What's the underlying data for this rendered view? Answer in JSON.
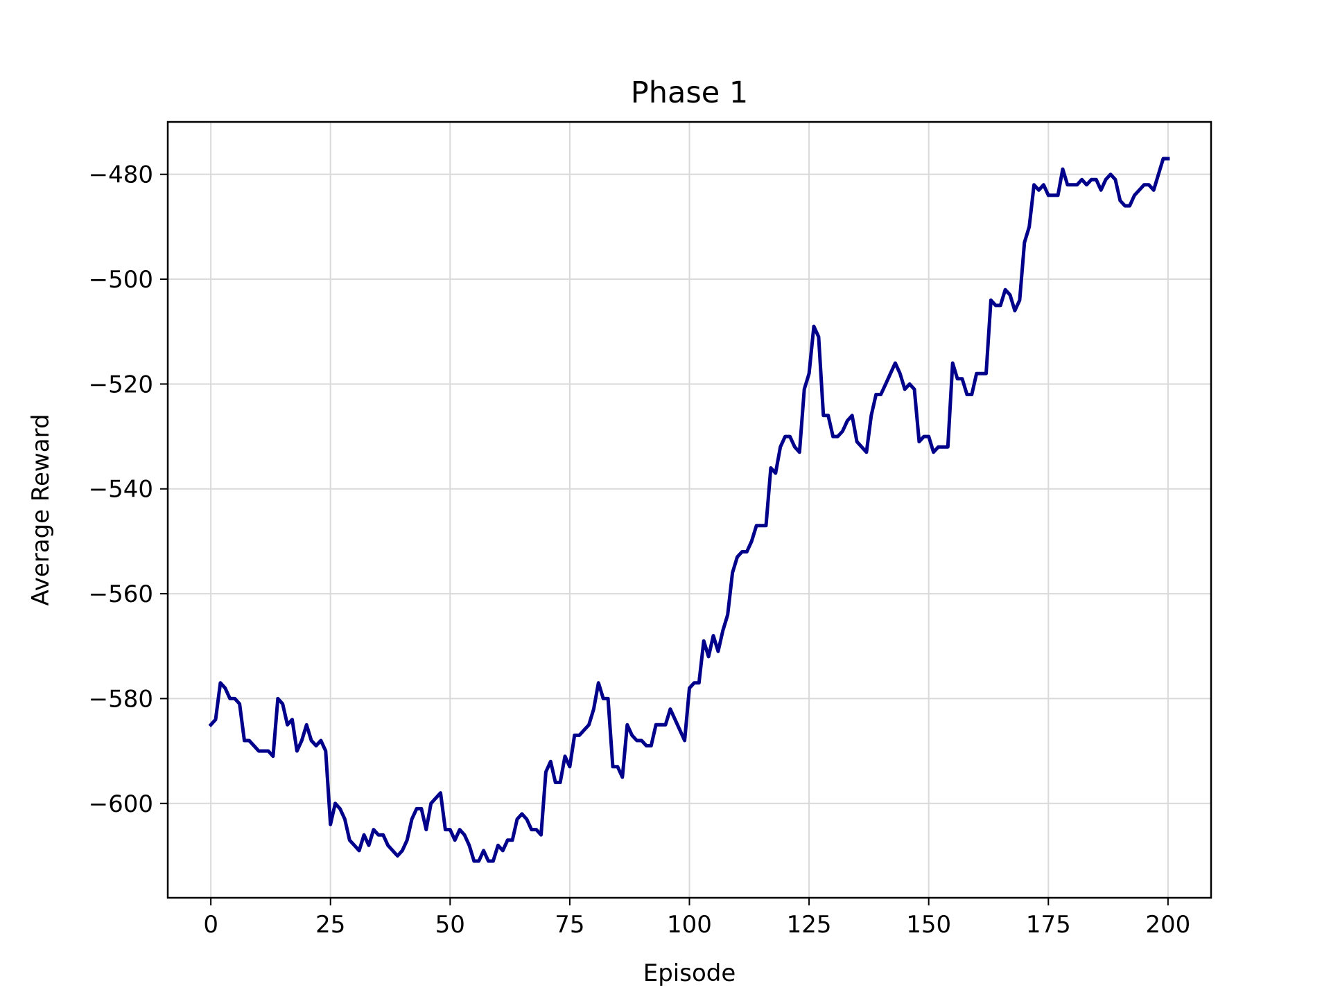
{
  "chart_data": {
    "type": "line",
    "title": "Phase 1",
    "xlabel": "Episode",
    "ylabel": "Average Reward",
    "xlim": [
      -9,
      209
    ],
    "ylim": [
      -618,
      -470
    ],
    "xticks": [
      0,
      25,
      50,
      75,
      100,
      125,
      150,
      175,
      200
    ],
    "yticks": [
      -600,
      -580,
      -560,
      -540,
      -520,
      -500,
      -480
    ],
    "xtick_labels": [
      "0",
      "25",
      "50",
      "75",
      "100",
      "125",
      "150",
      "175",
      "200"
    ],
    "ytick_labels": [
      "−600",
      "−580",
      "−560",
      "−540",
      "−520",
      "−500",
      "−480"
    ],
    "grid": true,
    "line_color": "#00008b",
    "series": [
      {
        "x": [
          0,
          1,
          2,
          3,
          4,
          5,
          6,
          7,
          8,
          9,
          10,
          11,
          12,
          13,
          14,
          15,
          16,
          17,
          18,
          19,
          20,
          21,
          22,
          23,
          24,
          25,
          26,
          27,
          28,
          29,
          30,
          31,
          32,
          33,
          34,
          35,
          36,
          37,
          38,
          39,
          40,
          41,
          42,
          43,
          44,
          45,
          46,
          47,
          48,
          49,
          50,
          51,
          52,
          53,
          54,
          55,
          56,
          57,
          58,
          59,
          60,
          61,
          62,
          63,
          64,
          65,
          66,
          67,
          68,
          69,
          70,
          71,
          72,
          73,
          74,
          75,
          76,
          77,
          78,
          79,
          80,
          81,
          82,
          83,
          84,
          85,
          86,
          87,
          88,
          89,
          90,
          91,
          92,
          93,
          94,
          95,
          96,
          97,
          98,
          99,
          100,
          101,
          102,
          103,
          104,
          105,
          106,
          107,
          108,
          109,
          110,
          111,
          112,
          113,
          114,
          115,
          116,
          117,
          118,
          119,
          120,
          121,
          122,
          123,
          124,
          125,
          126,
          127,
          128,
          129,
          130,
          131,
          132,
          133,
          134,
          135,
          136,
          137,
          138,
          139,
          140,
          141,
          142,
          143,
          144,
          145,
          146,
          147,
          148,
          149,
          150,
          151,
          152,
          153,
          154,
          155,
          156,
          157,
          158,
          159,
          160,
          161,
          162,
          163,
          164,
          165,
          166,
          167,
          168,
          169,
          170,
          171,
          172,
          173,
          174,
          175,
          176,
          177,
          178,
          179,
          180,
          181,
          182,
          183,
          184,
          185,
          186,
          187,
          188,
          189,
          190,
          191,
          192,
          193,
          194,
          195,
          196,
          197,
          198,
          199,
          200
        ],
        "y": [
          -585,
          -584,
          -577,
          -578,
          -580,
          -580,
          -581,
          -588,
          -588,
          -589,
          -590,
          -590,
          -590,
          -591,
          -580,
          -581,
          -585,
          -584,
          -590,
          -588,
          -585,
          -588,
          -589,
          -588,
          -590,
          -604,
          -600,
          -601,
          -603,
          -607,
          -608,
          -609,
          -606,
          -608,
          -605,
          -606,
          -606,
          -608,
          -609,
          -610,
          -609,
          -607,
          -603,
          -601,
          -601,
          -605,
          -600,
          -599,
          -598,
          -605,
          -605,
          -607,
          -605,
          -606,
          -608,
          -611,
          -611,
          -609,
          -611,
          -611,
          -608,
          -609,
          -607,
          -607,
          -603,
          -602,
          -603,
          -605,
          -605,
          -606,
          -594,
          -592,
          -596,
          -596,
          -591,
          -593,
          -587,
          -587,
          -586,
          -585,
          -582,
          -577,
          -580,
          -580,
          -593,
          -593,
          -595,
          -585,
          -587,
          -588,
          -588,
          -589,
          -589,
          -585,
          -585,
          -585,
          -582,
          -584,
          -586,
          -588,
          -578,
          -577,
          -577,
          -569,
          -572,
          -568,
          -571,
          -567,
          -564,
          -556,
          -553,
          -552,
          -552,
          -550,
          -547,
          -547,
          -547,
          -536,
          -537,
          -532,
          -530,
          -530,
          -532,
          -533,
          -521,
          -518,
          -509,
          -511,
          -526,
          -526,
          -530,
          -530,
          -529,
          -527,
          -526,
          -531,
          -532,
          -533,
          -526,
          -522,
          -522,
          -520,
          -518,
          -516,
          -518,
          -521,
          -520,
          -521,
          -531,
          -530,
          -530,
          -533,
          -532,
          -532,
          -532,
          -516,
          -519,
          -519,
          -522,
          -522,
          -518,
          -518,
          -518,
          -504,
          -505,
          -505,
          -502,
          -503,
          -506,
          -504,
          -493,
          -490,
          -482,
          -483,
          -482,
          -484,
          -484,
          -484,
          -479,
          -482,
          -482,
          -482,
          -481,
          -482,
          -481,
          -481,
          -483,
          -481,
          -480,
          -481,
          -485,
          -486,
          -486,
          -484,
          -483,
          -482,
          -482,
          -483,
          -480,
          -477,
          -477
        ]
      }
    ]
  }
}
